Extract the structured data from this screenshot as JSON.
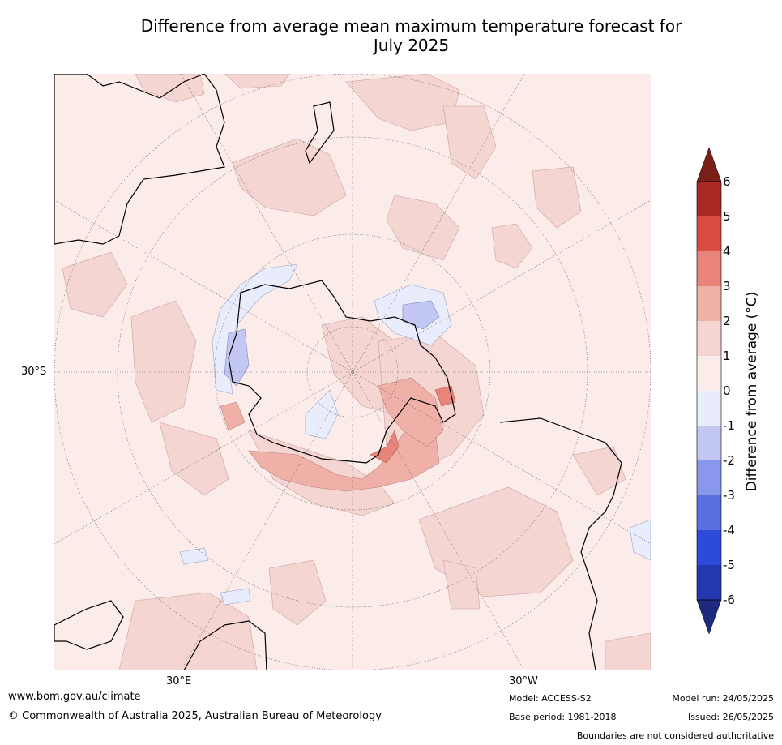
{
  "title_line1": "Difference from average mean maximum temperature forecast for",
  "title_line2": "July 2025",
  "lat_label": "30°S",
  "lon_labels": [
    "30°E",
    "30°W"
  ],
  "colorbar": {
    "title": "Difference from average (°C)",
    "ticks": [
      "6",
      "5",
      "4",
      "3",
      "2",
      "1",
      "0",
      "-1",
      "-2",
      "-3",
      "-4",
      "-5",
      "-6"
    ],
    "colors": {
      "above_6": "#7a1e17",
      "5_6": "#aa2a23",
      "4_5": "#d94d41",
      "3_4": "#e8847a",
      "2_3": "#efb0a8",
      "1_2": "#f5d5d1",
      "0_1": "#fbebe9",
      "m1_0": "#e8ecfb",
      "m2_m1": "#c2c8f1",
      "m3_m2": "#8a98ec",
      "m4_m3": "#5a6fe0",
      "m5_m4": "#2d4bda",
      "m6_m5": "#2438b0",
      "below_m6": "#1d2a80"
    }
  },
  "footer": {
    "website": "www.bom.gov.au/climate",
    "copyright": "© Commonwealth of Australia 2025, Australian Bureau of Meteorology",
    "model": "Model: ACCESS-S2",
    "base_period": "Base period: 1981-2018",
    "model_run": "Model run: 24/05/2025",
    "issued": "Issued: 26/05/2025",
    "disclaimer": "Boundaries are not considered authoritative"
  }
}
